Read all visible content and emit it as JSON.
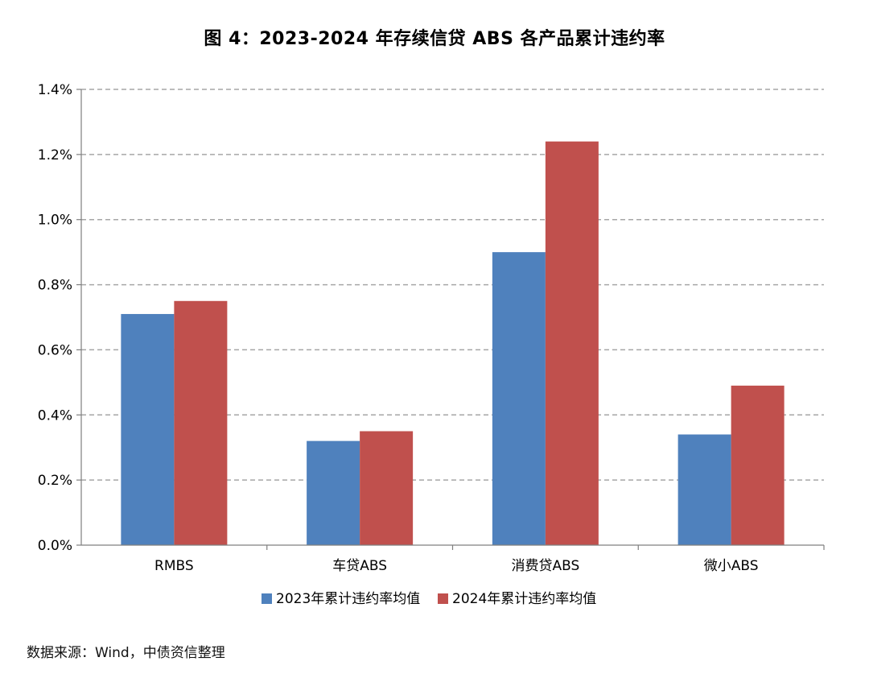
{
  "source_note": "数据来源：Wind，中债资信整理",
  "chart_data": {
    "type": "bar",
    "title": "图 4：2023-2024 年存续信贷 ABS 各产品累计违约率",
    "categories": [
      "RMBS",
      "车贷ABS",
      "消费贷ABS",
      "微小ABS"
    ],
    "series": [
      {
        "name": "2023年累计违约率均值",
        "color": "#4f81bd",
        "values": [
          0.71,
          0.32,
          0.9,
          0.34
        ]
      },
      {
        "name": "2024年累计违约率均值",
        "color": "#c0504d",
        "values": [
          0.75,
          0.35,
          1.24,
          0.49
        ]
      }
    ],
    "ylim": [
      0,
      1.4
    ],
    "y_ticks": [
      "0.0%",
      "0.2%",
      "0.4%",
      "0.6%",
      "0.8%",
      "1.0%",
      "1.2%",
      "1.4%"
    ],
    "y_unit": "%",
    "grid": true,
    "legend_position": "bottom"
  }
}
